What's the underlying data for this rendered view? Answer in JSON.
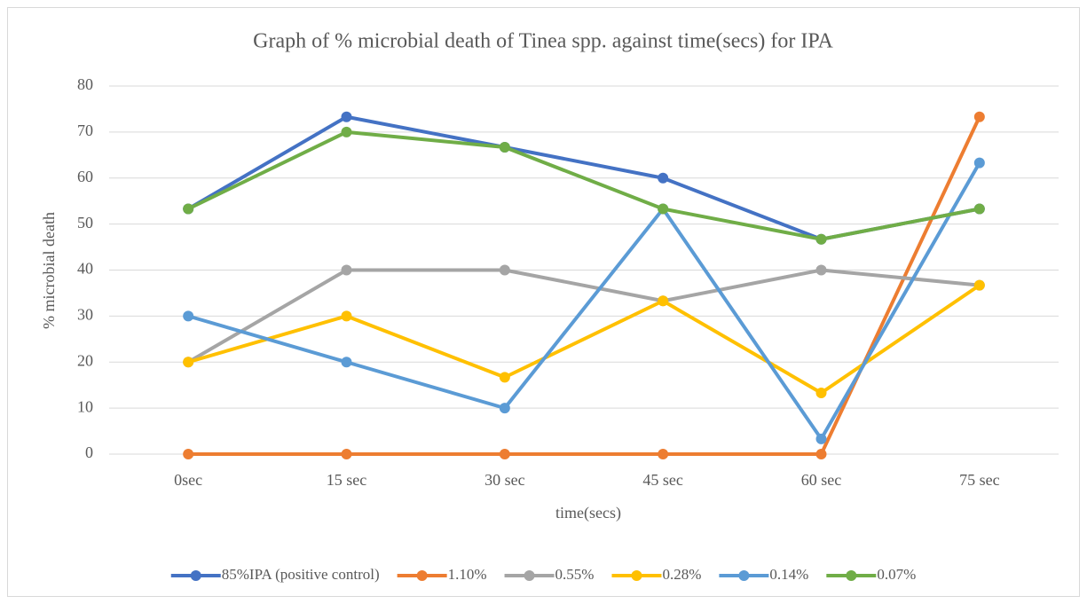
{
  "chart_data": {
    "type": "line",
    "title": "Graph of % microbial death of Tinea spp. against time(secs) for IPA",
    "x_label": "time(secs)",
    "y_label": "% microbial death",
    "categories": [
      "0sec",
      "15 sec",
      "30 sec",
      "45 sec",
      "60 sec",
      "75 sec"
    ],
    "series": [
      {
        "name": "85%IPA (positive control)",
        "color": "#4472c4",
        "values": [
          53.3,
          73.3,
          66.7,
          60,
          46.7,
          53.3
        ]
      },
      {
        "name": "1.10%",
        "color": "#ed7d31",
        "values": [
          0,
          0,
          0,
          0,
          0,
          73.3
        ]
      },
      {
        "name": "0.55%",
        "color": "#a5a5a5",
        "values": [
          20,
          40,
          40,
          33.3,
          40,
          36.7
        ]
      },
      {
        "name": "0.28%",
        "color": "#ffc000",
        "values": [
          20,
          30,
          16.7,
          33.3,
          13.3,
          36.7
        ]
      },
      {
        "name": "0.14%",
        "color": "#5b9bd5",
        "values": [
          30,
          20,
          10,
          53.3,
          3.3,
          63.3
        ]
      },
      {
        "name": "0.07%",
        "color": "#70ad47",
        "values": [
          53.3,
          70,
          66.7,
          53.3,
          46.7,
          53.3
        ]
      }
    ],
    "ylim": [
      0,
      80
    ],
    "yticks": [
      0,
      10,
      20,
      30,
      40,
      50,
      60,
      70,
      80
    ],
    "grid": true,
    "legend": "bottom"
  }
}
